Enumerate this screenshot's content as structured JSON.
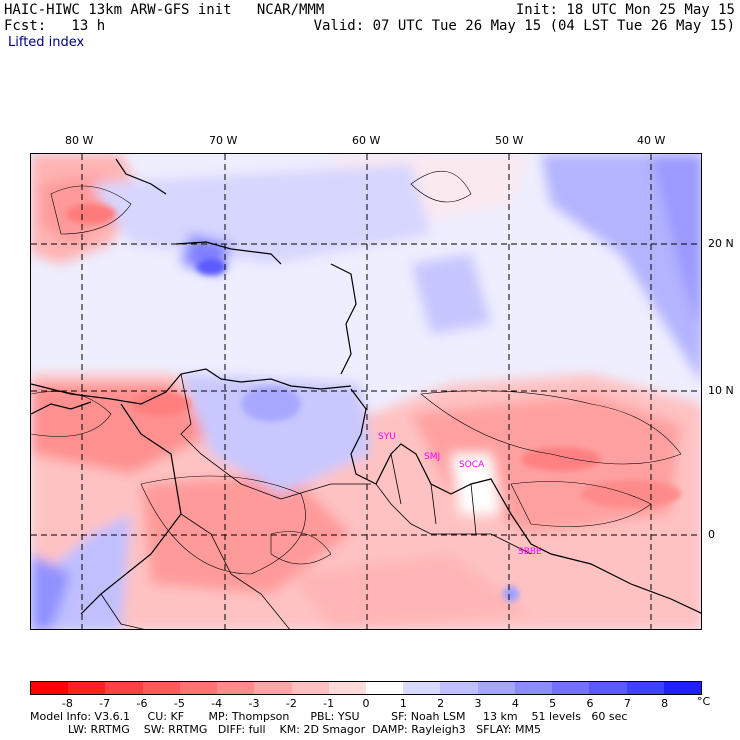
{
  "header": {
    "model_line": "HAIC-HIWC 13km ARW-GFS init   NCAR/MMM",
    "fcst_line": "Fcst:   13 h",
    "field_name": "Lifted index",
    "init_line": "Init: 18 UTC Mon 25 May 15",
    "valid_line": "Valid: 07 UTC Tue 26 May 15 (04 LST Tue 26 May 15)"
  },
  "map": {
    "lon_labels": [
      "80 W",
      "70 W",
      "60 W",
      "50 W",
      "40 W"
    ],
    "lat_labels": [
      "20 N",
      "10 N",
      "0"
    ],
    "stations": [
      "SYU",
      "SMJ",
      "SOCA",
      "SBBE"
    ]
  },
  "colorbar": {
    "labels": [
      "-8",
      "-7",
      "-6",
      "-5",
      "-4",
      "-3",
      "-2",
      "-1",
      "0",
      "1",
      "2",
      "3",
      "4",
      "5",
      "6",
      "7",
      "8"
    ],
    "unit": "°C",
    "colors": [
      "#ff0000",
      "#ff2020",
      "#ff4040",
      "#ff5a5a",
      "#ff7373",
      "#ff8c8c",
      "#ffa6a6",
      "#ffc0c0",
      "#ffdada",
      "#ffffff",
      "#dadaff",
      "#c0c0ff",
      "#a6a6ff",
      "#8c8cff",
      "#7373ff",
      "#5a5aff",
      "#4040ff",
      "#2020ff"
    ]
  },
  "footer": {
    "line1": "Model Info: V3.6.1     CU: KF       MP: Thompson      PBL: YSU         SF: Noah LSM     13 km    51 levels   60 sec",
    "line2": "LW: RRTMG    SW: RRTMG   DIFF: full    KM: 2D Smagor  DAMP: Rayleigh3   SFLAY: MM5"
  }
}
